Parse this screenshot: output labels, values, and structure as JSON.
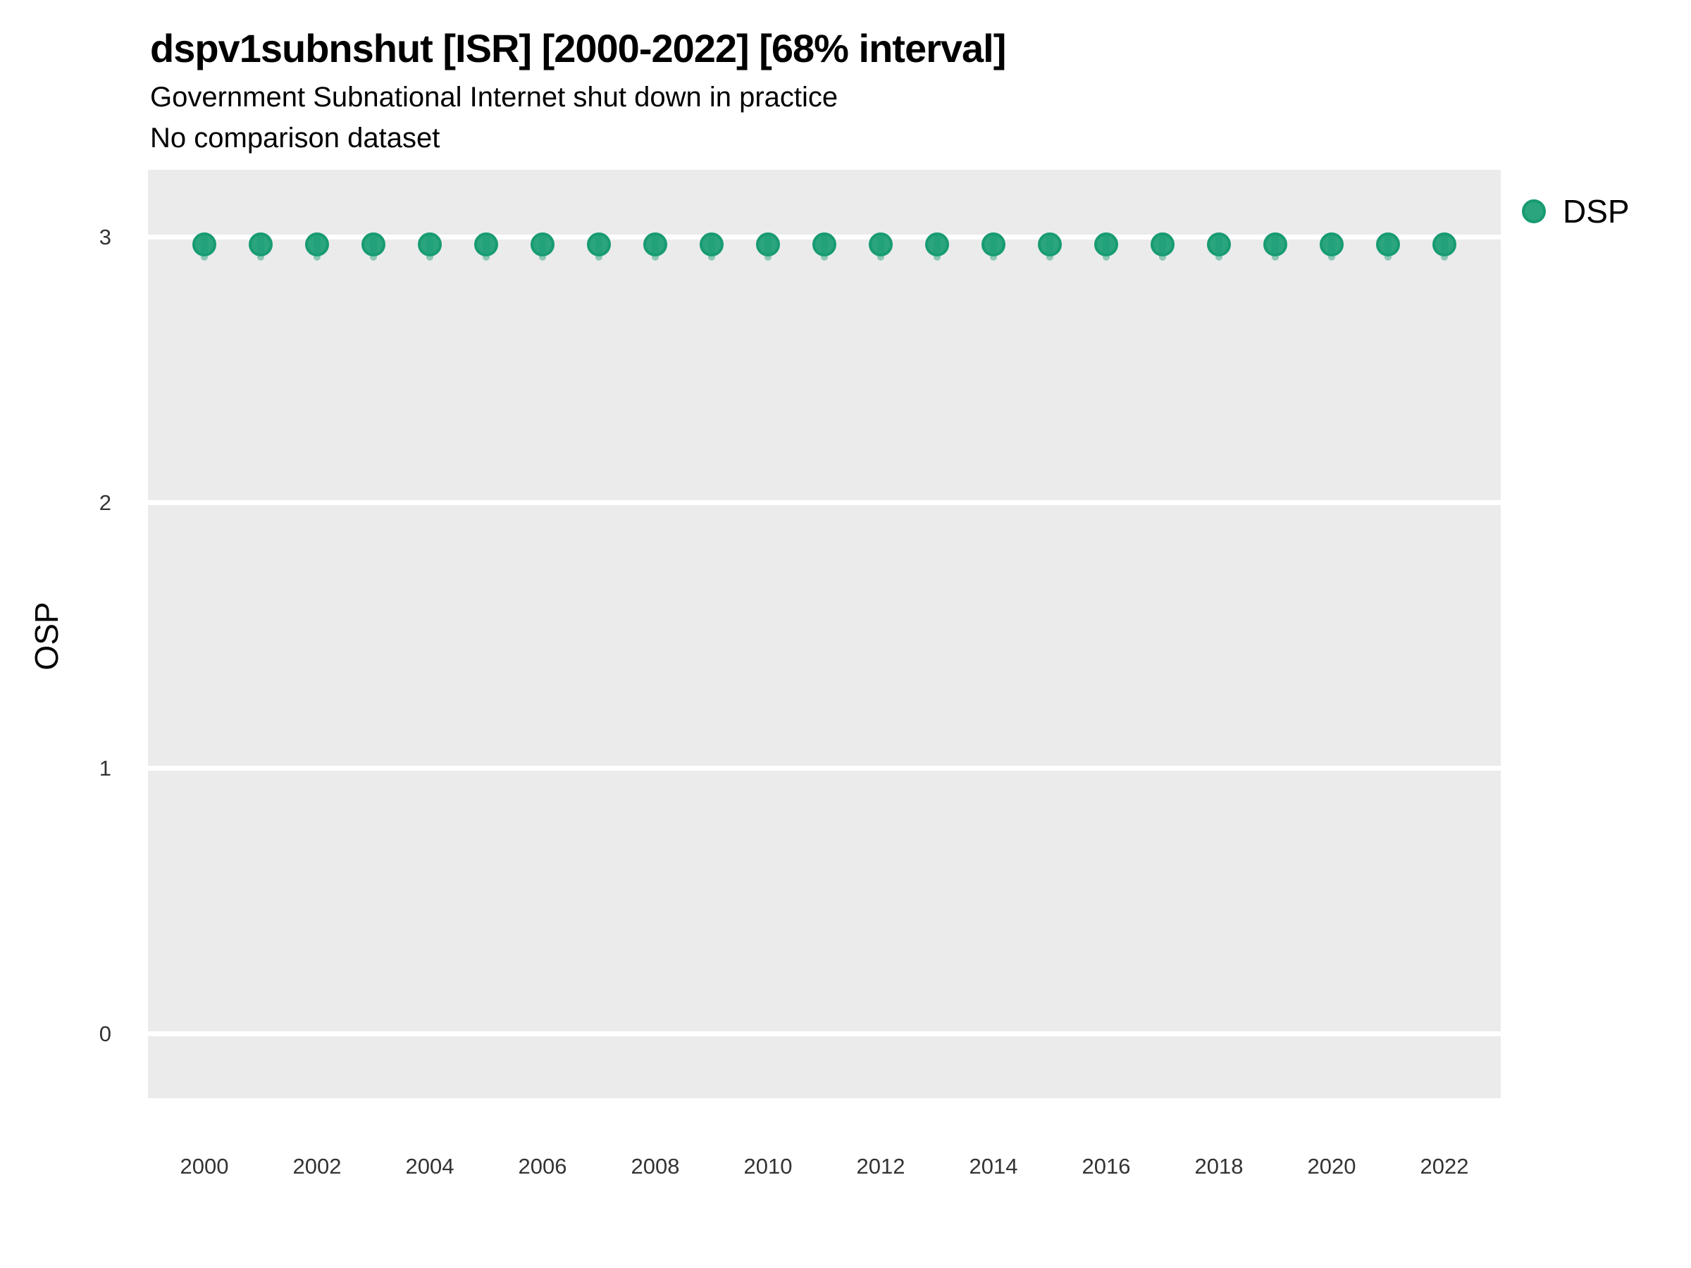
{
  "title": "dspv1subnshut [ISR] [2000-2022] [68% interval]",
  "subtitle": "Government Subnational Internet shut down in practice",
  "subtitle2": "No comparison dataset",
  "legend": {
    "label": "DSP"
  },
  "axes": {
    "y_label": "OSP",
    "y_ticks": [
      3,
      2,
      1,
      0
    ],
    "x_ticks": [
      2000,
      2002,
      2004,
      2006,
      2008,
      2010,
      2012,
      2014,
      2016,
      2018,
      2020,
      2022
    ]
  },
  "colors": {
    "panel_bg": "#ebebeb",
    "gridline": "#ffffff",
    "point_fill": "#2aa57e",
    "point_border": "#189b72",
    "interval": "rgba(27,158,119,0.45)"
  },
  "chart_data": {
    "type": "scatter",
    "title": "dspv1subnshut [ISR] [2000-2022] [68% interval]",
    "subtitle": "Government Subnational Internet shut down in practice",
    "note": "No comparison dataset",
    "xlabel": "",
    "ylabel": "OSP",
    "xlim": [
      1999,
      2023
    ],
    "ylim": [
      -0.25,
      3.25
    ],
    "grid": "horizontal-major-only",
    "legend_position": "right",
    "series": [
      {
        "name": "DSP",
        "x": [
          2000,
          2001,
          2002,
          2003,
          2004,
          2005,
          2006,
          2007,
          2008,
          2009,
          2010,
          2011,
          2012,
          2013,
          2014,
          2015,
          2016,
          2017,
          2018,
          2019,
          2020,
          2021,
          2022
        ],
        "y": [
          2.97,
          2.97,
          2.97,
          2.97,
          2.97,
          2.97,
          2.97,
          2.97,
          2.97,
          2.97,
          2.97,
          2.97,
          2.97,
          2.97,
          2.97,
          2.97,
          2.97,
          2.97,
          2.97,
          2.97,
          2.97,
          2.97,
          2.97
        ],
        "ci_low": [
          2.92,
          2.92,
          2.92,
          2.92,
          2.92,
          2.92,
          2.92,
          2.92,
          2.92,
          2.92,
          2.92,
          2.92,
          2.92,
          2.92,
          2.92,
          2.92,
          2.92,
          2.92,
          2.92,
          2.92,
          2.92,
          2.92,
          2.92
        ],
        "ci_high": [
          3.0,
          3.0,
          3.0,
          3.0,
          3.0,
          3.0,
          3.0,
          3.0,
          3.0,
          3.0,
          3.0,
          3.0,
          3.0,
          3.0,
          3.0,
          3.0,
          3.0,
          3.0,
          3.0,
          3.0,
          3.0,
          3.0,
          3.0
        ],
        "interval_label": "68% interval"
      }
    ]
  }
}
